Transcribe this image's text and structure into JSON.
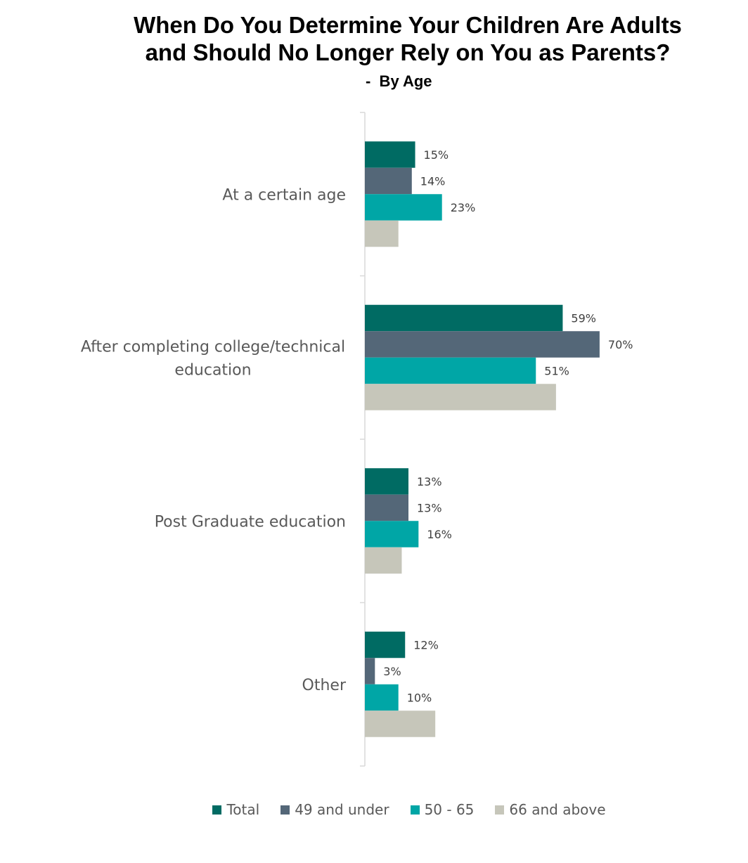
{
  "chart_data": {
    "type": "bar",
    "orientation": "horizontal",
    "title_line1": "When Do You Determine Your Children Are Adults",
    "title_line2": "and Should No Longer Rely on You as Parents?",
    "subtitle": "-  By Age",
    "categories": [
      [
        "At a certain age"
      ],
      [
        "After completing college/technical",
        "education"
      ],
      [
        "Post Graduate education"
      ],
      [
        "Other"
      ]
    ],
    "series": [
      {
        "name": "Total",
        "color": "#006B63",
        "values": [
          15,
          59,
          13,
          12
        ],
        "labels": [
          "15%",
          "59%",
          "13%",
          "12%"
        ]
      },
      {
        "name": "49 and under",
        "color": "#546778",
        "values": [
          14,
          70,
          13,
          3
        ],
        "labels": [
          "14%",
          "70%",
          "13%",
          "3%"
        ]
      },
      {
        "name": "50 - 65",
        "color": "#00A6A6",
        "values": [
          23,
          51,
          16,
          10
        ],
        "labels": [
          "23%",
          "51%",
          "16%",
          "10%"
        ]
      },
      {
        "name": "66 and above",
        "color": "#C6C6BA",
        "values": [
          10,
          57,
          11,
          21
        ],
        "labels": [
          "",
          "",
          "",
          ""
        ]
      }
    ],
    "xlim": [
      0,
      100
    ],
    "grid": false,
    "legend_position": "bottom"
  }
}
